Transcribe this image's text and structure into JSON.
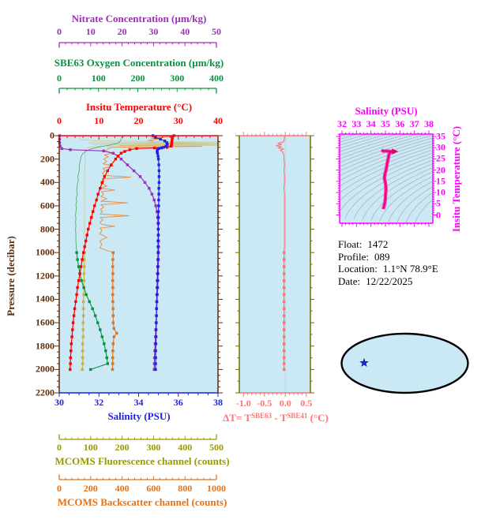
{
  "colors": {
    "background": "#FFFFFF",
    "plot_bg": "#CBE8F5",
    "pressure_brown": "#5B2D0E"
  },
  "info": {
    "lines": [
      {
        "label": "Float:",
        "value": "1472"
      },
      {
        "label": "Profile:",
        "value": "089"
      },
      {
        "label": "Location:",
        "value": "1.1°N  78.9°E"
      },
      {
        "label": "Date:",
        "value": "12/22/2025"
      }
    ]
  },
  "map": {
    "ocean_color": "#CBE8F5",
    "land_color": "#F5B9B9",
    "outline_color": "#000000",
    "marker": "star",
    "marker_color": "#2222EE"
  },
  "chart_data": [
    {
      "id": "main-profile",
      "type": "line",
      "ylabel": "Pressure (decibar)",
      "y_axis": {
        "label": "Pressure (decibar)",
        "color": "#5B2D0E",
        "range": [
          0,
          2200
        ],
        "ticks": [
          0,
          200,
          400,
          600,
          800,
          1000,
          1200,
          1400,
          1600,
          1800,
          2000,
          2200
        ],
        "tick_format": "int"
      },
      "x_axes": [
        {
          "name": "nitrate",
          "label": "Nitrate Concentration (µm/kg)",
          "color": "#9B30B5",
          "range": [
            0,
            50
          ],
          "ticks": [
            0,
            10,
            20,
            30,
            40,
            50
          ],
          "tick_format": "int"
        },
        {
          "name": "oxygen",
          "label": "SBE63 Oxygen Concentration (µm/kg)",
          "color": "#0A9044",
          "range": [
            0,
            400
          ],
          "ticks": [
            0,
            100,
            200,
            300,
            400
          ],
          "tick_format": "int"
        },
        {
          "name": "temperature",
          "label": "Insitu Temperature (°C)",
          "color": "#FF0000",
          "range": [
            0,
            40
          ],
          "ticks": [
            0,
            10,
            20,
            30,
            40
          ],
          "tick_format": "int"
        },
        {
          "name": "salinity",
          "label": "Salinity (PSU)",
          "color": "#1F1FE8",
          "range": [
            30,
            38
          ],
          "ticks": [
            30,
            32,
            34,
            36,
            38
          ],
          "tick_format": "int"
        },
        {
          "name": "fluorescence",
          "label": "MCOMS Fluorescence channel (counts)",
          "color": "#999900",
          "range": [
            0,
            500
          ],
          "ticks": [
            0,
            100,
            200,
            300,
            400,
            500
          ],
          "tick_format": "int"
        },
        {
          "name": "backscatter",
          "label": "MCOMS Backscatter channel (counts)",
          "color": "#E2731A",
          "range": [
            0,
            1000
          ],
          "ticks": [
            0,
            200,
            400,
            600,
            800,
            1000
          ],
          "tick_format": "int"
        }
      ],
      "series": [
        {
          "name": "mcoms-backscatter",
          "axis": "backscatter",
          "line_color": "#E98C3F",
          "marker_color": "#E2731A",
          "marker_from": 990,
          "p": [
            0,
            10,
            20,
            30,
            40,
            50,
            60,
            68,
            74,
            80,
            86,
            92,
            100,
            110,
            120,
            135,
            150,
            165,
            180,
            200,
            220,
            240,
            260,
            280,
            300,
            320,
            340,
            355,
            370,
            390,
            410,
            430,
            450,
            465,
            480,
            500,
            520,
            540,
            560,
            575,
            590,
            610,
            630,
            650,
            670,
            685,
            700,
            720,
            740,
            760,
            775,
            790,
            810,
            840,
            870,
            900,
            930,
            960,
            1000,
            1060,
            1120,
            1180,
            1240,
            1300,
            1360,
            1420,
            1480,
            1540,
            1600,
            1650,
            1690,
            1720,
            1780,
            1840,
            1900,
            1950,
            2000
          ],
          "v": [
            640,
            700,
            580,
            620,
            560,
            600,
            570,
            1020,
            420,
            1020,
            380,
            900,
            330,
            310,
            300,
            290,
            330,
            285,
            310,
            280,
            300,
            275,
            340,
            275,
            290,
            272,
            285,
            450,
            268,
            285,
            265,
            300,
            265,
            350,
            265,
            280,
            262,
            300,
            262,
            430,
            262,
            280,
            260,
            272,
            258,
            440,
            258,
            275,
            256,
            268,
            350,
            256,
            270,
            255,
            300,
            255,
            268,
            255,
            340,
            338,
            337,
            338,
            337,
            338,
            337,
            338,
            339,
            340,
            340,
            345,
            362,
            345,
            340,
            338,
            337,
            337,
            336
          ]
        },
        {
          "name": "mcoms-fluorescence",
          "axis": "fluorescence",
          "line_color": "#CBCF98",
          "marker_color": "#C4B540",
          "marker_from": 990,
          "p": [
            0,
            20,
            35,
            45,
            55,
            62,
            68,
            75,
            82,
            90,
            100,
            120,
            150,
            200,
            250,
            300,
            350,
            400,
            450,
            500,
            550,
            600,
            650,
            700,
            750,
            800,
            850,
            900,
            950,
            1000,
            1060,
            1120,
            1180,
            1240,
            1300,
            1360,
            1420,
            1480,
            1540,
            1600,
            1660,
            1720,
            1780,
            1840,
            1900,
            1950,
            2000
          ],
          "v": [
            62,
            65,
            70,
            120,
            520,
            90,
            530,
            100,
            540,
            130,
            90,
            82,
            80,
            82,
            81,
            80,
            79,
            80,
            79,
            80,
            79,
            80,
            79,
            80,
            79,
            80,
            79,
            80,
            79,
            80,
            79,
            79,
            78,
            78,
            77,
            77,
            76,
            76,
            76,
            75,
            75,
            75,
            74,
            74,
            74,
            74,
            73
          ]
        },
        {
          "name": "sbe63-oxygen",
          "axis": "oxygen",
          "line_color": "#4FB070",
          "marker_color": "#0A9044",
          "marker_from": 990,
          "p": [
            0,
            20,
            40,
            60,
            80,
            100,
            120,
            140,
            160,
            180,
            200,
            230,
            260,
            290,
            320,
            350,
            380,
            410,
            440,
            470,
            500,
            530,
            560,
            590,
            620,
            650,
            680,
            710,
            740,
            770,
            800,
            850,
            900,
            950,
            1000,
            1060,
            1120,
            1180,
            1240,
            1300,
            1360,
            1420,
            1480,
            1540,
            1600,
            1660,
            1720,
            1780,
            1840,
            1900,
            1950,
            2000
          ],
          "v": [
            158,
            157,
            155,
            150,
            128,
            95,
            74,
            64,
            58,
            55,
            54,
            52,
            50,
            51,
            49,
            47,
            48,
            46,
            45,
            44,
            46,
            43,
            44,
            42,
            43,
            42,
            41,
            42,
            41,
            42,
            41,
            42,
            42,
            43,
            44,
            46,
            49,
            52,
            56,
            62,
            68,
            76,
            84,
            91,
            97,
            103,
            108,
            113,
            117,
            120,
            122,
            79
          ]
        },
        {
          "name": "nitrate",
          "axis": "nitrate",
          "line_color": "#9B30B5",
          "marker_color": "#9B30B5",
          "marker_from": 0,
          "p": [
            0,
            30,
            60,
            90,
            110,
            120,
            130,
            150,
            175,
            200,
            250,
            300,
            350,
            400,
            450,
            500,
            550,
            600,
            650,
            700,
            750,
            800,
            850,
            900,
            950,
            1000,
            1060,
            1120,
            1180,
            1240,
            1300,
            1360,
            1420,
            1480,
            1540,
            1600,
            1660,
            1720,
            1780,
            1840,
            1900,
            1950,
            2000
          ],
          "v": [
            0.1,
            0.1,
            0.1,
            0.3,
            0.8,
            3.5,
            14,
            17,
            18.5,
            19.5,
            21.5,
            23.5,
            25.5,
            27,
            28.3,
            29.2,
            29.9,
            30.4,
            30.8,
            31.0,
            31.1,
            31.2,
            31.25,
            31.3,
            31.3,
            31.3,
            31.25,
            31.2,
            31.15,
            31.1,
            31.0,
            30.9,
            30.8,
            30.7,
            30.6,
            30.5,
            30.4,
            30.3,
            30.2,
            30.1,
            30.0,
            29.95,
            29.9
          ]
        },
        {
          "name": "insitu-temperature",
          "axis": "temperature",
          "line_color": "#FF0000",
          "marker_color": "#FF0000",
          "marker_from": 0,
          "p": [
            0,
            15,
            30,
            45,
            60,
            75,
            90,
            100,
            105,
            110,
            120,
            135,
            150,
            175,
            200,
            250,
            300,
            350,
            400,
            450,
            500,
            550,
            600,
            650,
            700,
            750,
            800,
            850,
            900,
            950,
            1000,
            1060,
            1120,
            1180,
            1240,
            1300,
            1360,
            1420,
            1480,
            1540,
            1600,
            1660,
            1720,
            1780,
            1840,
            1900,
            1950,
            2000
          ],
          "v": [
            28.9,
            28.5,
            28.45,
            28.4,
            28.35,
            28.3,
            28.2,
            27.2,
            24.0,
            19.5,
            17.8,
            16.5,
            15.6,
            14.8,
            14.2,
            13.1,
            12.2,
            11.4,
            10.8,
            10.3,
            9.8,
            9.4,
            8.9,
            8.5,
            8.1,
            7.7,
            7.3,
            7.0,
            6.7,
            6.4,
            6.1,
            5.8,
            5.5,
            5.2,
            4.9,
            4.6,
            4.4,
            4.15,
            3.9,
            3.7,
            3.5,
            3.35,
            3.2,
            3.05,
            2.95,
            2.85,
            2.8,
            2.75
          ]
        },
        {
          "name": "salinity",
          "axis": "salinity",
          "line_color": "#1F1FE8",
          "marker_color": "#1F1FE8",
          "marker_from": 0,
          "p": [
            0,
            15,
            30,
            45,
            60,
            75,
            90,
            100,
            105,
            110,
            120,
            135,
            150,
            175,
            200,
            250,
            300,
            350,
            400,
            450,
            500,
            550,
            600,
            650,
            700,
            750,
            800,
            850,
            900,
            950,
            1000,
            1060,
            1120,
            1180,
            1240,
            1300,
            1360,
            1420,
            1480,
            1540,
            1600,
            1660,
            1720,
            1780,
            1840,
            1900,
            1950,
            2000
          ],
          "v": [
            34.72,
            34.85,
            35.1,
            35.32,
            35.42,
            35.45,
            35.38,
            35.25,
            35.15,
            35.02,
            34.95,
            34.93,
            34.95,
            34.98,
            35.0,
            35.02,
            35.03,
            35.03,
            35.03,
            35.02,
            35.02,
            35.01,
            35.01,
            35.0,
            35.0,
            35.0,
            34.99,
            34.99,
            34.98,
            34.98,
            34.98,
            34.97,
            34.96,
            34.95,
            34.94,
            34.93,
            34.92,
            34.91,
            34.9,
            34.9,
            34.89,
            34.88,
            34.88,
            34.87,
            34.86,
            34.86,
            34.855,
            34.85
          ]
        }
      ]
    },
    {
      "id": "delta-t-profile",
      "type": "line",
      "x_axis": {
        "label_parts": {
          "pre": "ΔT= T",
          "sup1": "SBE63",
          "mid": " - T",
          "sup2": "SBE41",
          "post": " (°C)"
        },
        "color": "#FF7373",
        "range": [
          -1.1,
          0.6
        ],
        "tick_values": [
          -1.0,
          -0.5,
          0.0,
          0.5
        ],
        "tick_format": "1dp",
        "minor_step": 0.1
      },
      "side_color": "#6E6E00",
      "zero_line_color": "#C8C8C8",
      "series": {
        "name": "delta-t",
        "color": "#FF7373",
        "marker_from": 990,
        "p": [
          0,
          20,
          40,
          55,
          65,
          75,
          85,
          95,
          105,
          115,
          125,
          140,
          160,
          180,
          200,
          250,
          300,
          350,
          400,
          450,
          500,
          600,
          700,
          800,
          900,
          950,
          1000,
          1060,
          1120,
          1180,
          1240,
          1300,
          1360,
          1420,
          1480,
          1540,
          1600,
          1660,
          1720,
          1780,
          1840,
          1900,
          1950,
          2000
        ],
        "v": [
          -0.02,
          -0.02,
          -0.03,
          -0.05,
          -0.18,
          -0.08,
          -0.22,
          -0.1,
          -0.16,
          -0.05,
          -0.12,
          -0.06,
          -0.04,
          -0.03,
          -0.03,
          -0.02,
          -0.03,
          -0.02,
          -0.02,
          -0.03,
          -0.02,
          -0.02,
          -0.02,
          -0.02,
          -0.02,
          -0.02,
          -0.03,
          -0.03,
          -0.03,
          -0.03,
          -0.03,
          -0.03,
          -0.03,
          -0.03,
          -0.03,
          -0.03,
          -0.03,
          -0.03,
          -0.03,
          -0.03,
          -0.03,
          -0.03,
          -0.03,
          -0.03
        ]
      }
    },
    {
      "id": "ts-diagram",
      "type": "scatter",
      "x_axis": {
        "label": "Salinity (PSU)",
        "color": "#FF00FF",
        "range": [
          32,
          38
        ],
        "ticks": [
          32,
          33,
          34,
          35,
          36,
          37,
          38
        ],
        "tick_format": "int"
      },
      "y_axis": {
        "label": "Insitu Temperature (°C)",
        "color": "#FF00FF",
        "range": [
          0,
          35
        ],
        "ticks": [
          0,
          5,
          10,
          15,
          20,
          25,
          30,
          35
        ],
        "tick_format": "int"
      },
      "frame_color": "#FF00FF",
      "curve_outer_color": "#FF30B0",
      "curve_core_color": "#E00070",
      "contour_color": "#A8B6BC",
      "curve_note": "T-S pairs taken from insitu-temperature and salinity series of main-profile"
    }
  ]
}
